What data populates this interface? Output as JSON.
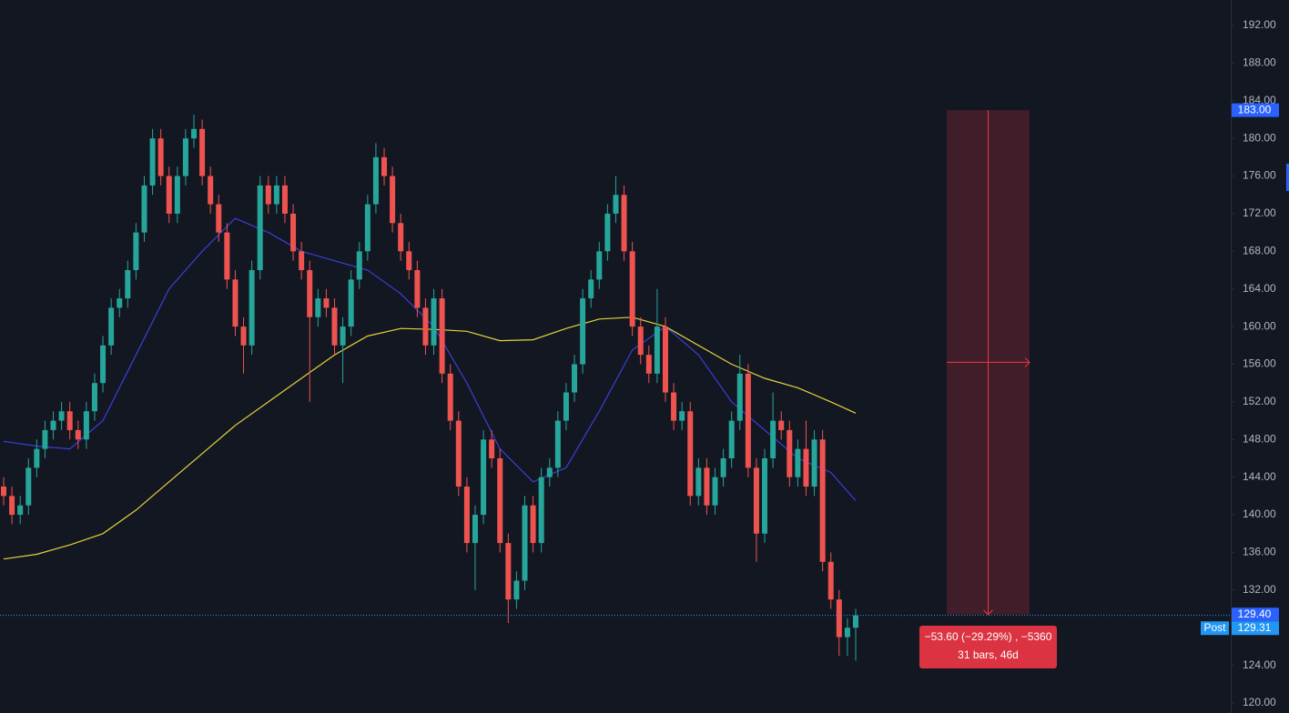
{
  "chart_data": {
    "type": "candlestick",
    "up_color": "#26a69a",
    "down_color": "#ef5350",
    "open": [
      143,
      142,
      140,
      141,
      145,
      147,
      149,
      150,
      151,
      149,
      148,
      151,
      154,
      158,
      162,
      163,
      166,
      170,
      175,
      180,
      176,
      172,
      176,
      180,
      181,
      176,
      173,
      170,
      165,
      160,
      158,
      166,
      175,
      173,
      175,
      172,
      168,
      166,
      161,
      163,
      162,
      158,
      160,
      165,
      168,
      173,
      178,
      176,
      171,
      168,
      166,
      162,
      158,
      163,
      155,
      150,
      143,
      137,
      140,
      148,
      146,
      137,
      131,
      133,
      141,
      137,
      144,
      145,
      150,
      153,
      156,
      163,
      165,
      168,
      172,
      174,
      168,
      160,
      157,
      155,
      160,
      153,
      150,
      151,
      142,
      145,
      141,
      144,
      146,
      150,
      155,
      145,
      138,
      146,
      150,
      149,
      144,
      147,
      143,
      148,
      135,
      131,
      127,
      128
    ],
    "high": [
      144,
      143,
      142,
      146,
      148,
      150,
      151,
      152,
      152,
      150,
      152,
      155,
      159,
      163,
      164,
      167,
      171,
      176,
      181,
      181,
      177,
      177,
      181,
      182.5,
      182,
      177,
      174,
      171,
      166,
      161,
      167,
      176,
      176,
      176,
      176,
      173,
      169,
      167,
      164,
      164,
      163,
      161,
      166,
      169,
      174,
      179.5,
      179,
      177,
      172,
      169,
      167,
      163,
      164,
      164,
      156,
      151,
      144,
      141,
      149,
      149,
      147,
      138,
      134,
      142,
      142,
      145,
      146,
      151,
      154,
      157,
      164,
      166,
      169,
      173,
      176,
      175,
      169,
      161,
      158,
      164,
      161,
      154,
      152,
      152,
      146,
      146,
      145,
      147,
      151,
      157,
      156,
      146,
      147,
      153,
      151,
      150,
      148,
      150,
      149,
      149,
      136,
      132,
      129,
      130
    ],
    "low": [
      141,
      139,
      139,
      140,
      144,
      146,
      148,
      149,
      148,
      147,
      147,
      150,
      153,
      157,
      161,
      162,
      165,
      169,
      174,
      175,
      171,
      171,
      175,
      179,
      175,
      172,
      169,
      164,
      159,
      155,
      157,
      165,
      172,
      172,
      171,
      167,
      165,
      152,
      160,
      161,
      157,
      154,
      159,
      164,
      167,
      172,
      175,
      170,
      167,
      165,
      161,
      157,
      157,
      154,
      149,
      142,
      136,
      132,
      139,
      145,
      136,
      128.5,
      130,
      132,
      136,
      136,
      143,
      144,
      149,
      152,
      155,
      162,
      164,
      167,
      171,
      167,
      159,
      156,
      154,
      154,
      152,
      149,
      149,
      141,
      141,
      140,
      140,
      143,
      145,
      149,
      144,
      135,
      137,
      145,
      148,
      143,
      143,
      142,
      142,
      134,
      130,
      125,
      125,
      124.5
    ],
    "close": [
      142,
      140,
      141,
      145,
      147,
      149,
      150,
      151,
      149,
      148,
      151,
      154,
      158,
      162,
      163,
      166,
      170,
      175,
      180,
      176,
      172,
      176,
      180,
      181,
      176,
      173,
      170,
      165,
      160,
      158,
      166,
      175,
      173,
      175,
      172,
      168,
      166,
      161,
      163,
      162,
      158,
      160,
      165,
      168,
      173,
      178,
      176,
      171,
      168,
      166,
      162,
      158,
      163,
      155,
      150,
      143,
      137,
      140,
      148,
      146,
      137,
      131,
      133,
      141,
      137,
      144,
      145,
      150,
      153,
      156,
      163,
      165,
      168,
      172,
      174,
      168,
      160,
      157,
      155,
      160,
      153,
      150,
      151,
      142,
      145,
      141,
      144,
      146,
      150,
      155,
      145,
      138,
      146,
      150,
      149,
      144,
      147,
      143,
      148,
      135,
      131,
      127,
      128,
      129.31
    ],
    "moving_averages": [
      {
        "color": "#3a3fd6",
        "x": [
          0,
          4,
          8,
          12,
          16,
          20,
          24,
          28,
          32,
          36,
          40,
          44,
          48,
          52,
          56,
          60,
          64,
          68,
          72,
          76,
          80,
          84,
          88,
          92,
          96,
          100,
          103
        ],
        "values": [
          147.8,
          147.3,
          147,
          150,
          157,
          164,
          168,
          171.5,
          170,
          168,
          167,
          166,
          163.5,
          160,
          154,
          147,
          143.5,
          145,
          151,
          157.5,
          160,
          157,
          152,
          149,
          146,
          144.5,
          141.5
        ]
      },
      {
        "color": "#e3d33b",
        "x": [
          0,
          4,
          8,
          12,
          16,
          20,
          24,
          28,
          32,
          36,
          40,
          44,
          48,
          52,
          56,
          60,
          64,
          68,
          72,
          76,
          80,
          84,
          88,
          92,
          96,
          100,
          103
        ],
        "values": [
          135.3,
          135.8,
          136.8,
          138,
          140.5,
          143.5,
          146.5,
          149.5,
          152,
          154.5,
          157,
          159,
          159.8,
          159.7,
          159.5,
          158.5,
          158.6,
          159.8,
          160.8,
          161,
          160,
          158,
          156,
          154.5,
          153.5,
          152,
          150.8
        ]
      }
    ],
    "ylim": [
      120,
      192
    ],
    "yticks": [
      {
        "value": 120,
        "label": "120.00"
      },
      {
        "value": 124,
        "label": "124.00"
      },
      {
        "value": 128,
        "label": "128.00"
      },
      {
        "value": 132,
        "label": "132.00"
      },
      {
        "value": 136,
        "label": "136.00"
      },
      {
        "value": 140,
        "label": "140.00"
      },
      {
        "value": 144,
        "label": "144.00"
      },
      {
        "value": 148,
        "label": "148.00"
      },
      {
        "value": 152,
        "label": "152.00"
      },
      {
        "value": 156,
        "label": "156.00"
      },
      {
        "value": 160,
        "label": "160.00"
      },
      {
        "value": 164,
        "label": "164.00"
      },
      {
        "value": 168,
        "label": "168.00"
      },
      {
        "value": 172,
        "label": "172.00"
      },
      {
        "value": 176,
        "label": "176.00"
      },
      {
        "value": 180,
        "label": "180.00"
      },
      {
        "value": 184,
        "label": "184.00"
      },
      {
        "value": 188,
        "label": "188.00"
      },
      {
        "value": 192,
        "label": "192.00"
      }
    ],
    "price_tags": [
      {
        "value": 183,
        "label": "183.00",
        "color": "#2962ff"
      },
      {
        "value": 129.4,
        "label": "129.40",
        "color": "#2962ff"
      },
      {
        "value": 129.31,
        "label": "129.31",
        "color": "#2196f3"
      }
    ],
    "post_label": "Post",
    "measure": {
      "top": 183,
      "bottom": 129.4,
      "color": "#f23645",
      "label1": "−53.60 (−29.29%) , −5360",
      "label2": "31 bars, 46d"
    }
  }
}
